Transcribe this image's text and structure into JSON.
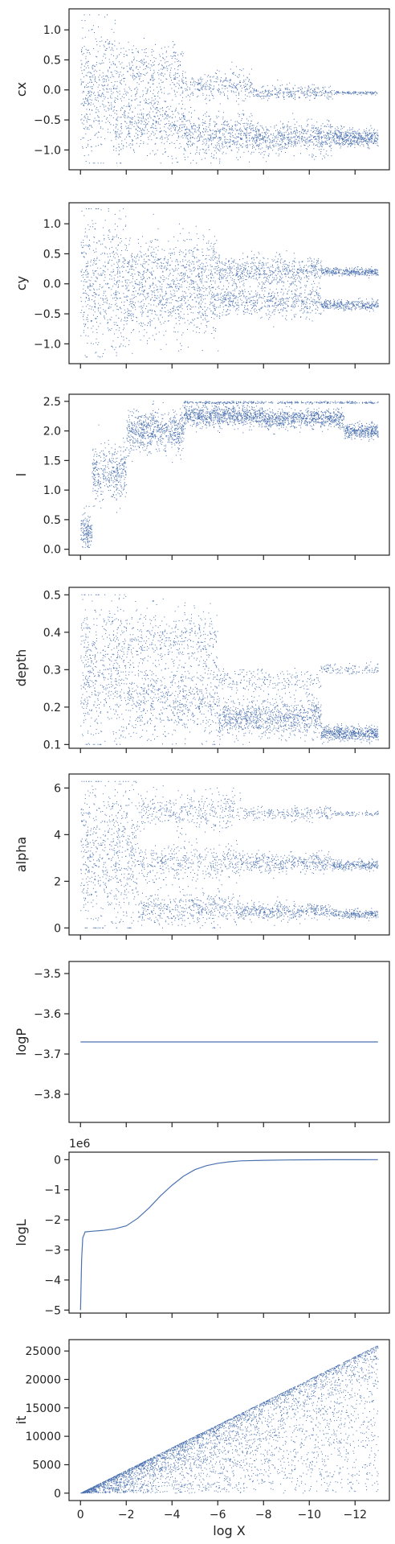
{
  "figure": {
    "background": "#ffffff",
    "point_color": "#4c72b0",
    "xlabel": "log X"
  },
  "chart_data": [
    {
      "type": "scatter",
      "ylabel": "cx",
      "xlim": [
        0.5,
        -13.5
      ],
      "ylim": [
        -1.33,
        1.35
      ],
      "yticks": [
        -1.0,
        -0.5,
        0.0,
        0.5,
        1.0
      ],
      "ytick_labels": [
        "−1.0",
        "−0.5",
        "0.0",
        "0.5",
        "1.0"
      ],
      "xticks": [
        0,
        -2,
        -4,
        -6,
        -8,
        -10,
        -12
      ],
      "show_xtick_labels": false,
      "x_range": [
        0,
        -13
      ],
      "cluster_profile": [
        {
          "x": 0,
          "centers": [
            0.0
          ],
          "spread": [
            1.1
          ],
          "weight": [
            1
          ]
        },
        {
          "x": -3,
          "centers": [
            0.3,
            -0.55
          ],
          "spread": [
            0.5,
            0.5
          ],
          "weight": [
            0.45,
            0.55
          ]
        },
        {
          "x": -6,
          "centers": [
            0.05,
            -0.75
          ],
          "spread": [
            0.25,
            0.35
          ],
          "weight": [
            0.35,
            0.65
          ]
        },
        {
          "x": -9,
          "centers": [
            -0.05,
            -0.8
          ],
          "spread": [
            0.12,
            0.25
          ],
          "weight": [
            0.3,
            0.7
          ]
        },
        {
          "x": -13,
          "centers": [
            -0.05,
            -0.8
          ],
          "spread": [
            0.03,
            0.15
          ],
          "weight": [
            0.2,
            0.8
          ]
        }
      ],
      "clip": [
        -1.22,
        1.25
      ]
    },
    {
      "type": "scatter",
      "ylabel": "cy",
      "xlim": [
        0.5,
        -13.5
      ],
      "ylim": [
        -1.33,
        1.35
      ],
      "yticks": [
        -1.0,
        -0.5,
        0.0,
        0.5,
        1.0
      ],
      "ytick_labels": [
        "−1.0",
        "−0.5",
        "0.0",
        "0.5",
        "1.0"
      ],
      "xticks": [
        0,
        -2,
        -4,
        -6,
        -8,
        -10,
        -12
      ],
      "show_xtick_labels": false,
      "x_range": [
        0,
        -13
      ],
      "cluster_profile": [
        {
          "x": 0,
          "centers": [
            0.0
          ],
          "spread": [
            1.15
          ],
          "weight": [
            1
          ]
        },
        {
          "x": -4,
          "centers": [
            0.25,
            -0.35
          ],
          "spread": [
            0.55,
            0.55
          ],
          "weight": [
            0.5,
            0.5
          ]
        },
        {
          "x": -8,
          "centers": [
            0.2,
            -0.3
          ],
          "spread": [
            0.25,
            0.25
          ],
          "weight": [
            0.5,
            0.5
          ]
        },
        {
          "x": -13,
          "centers": [
            0.2,
            -0.35
          ],
          "spread": [
            0.07,
            0.08
          ],
          "weight": [
            0.5,
            0.5
          ]
        }
      ],
      "clip": [
        -1.22,
        1.25
      ]
    },
    {
      "type": "scatter",
      "ylabel": "l",
      "xlim": [
        0.5,
        -13.5
      ],
      "ylim": [
        -0.1,
        2.62
      ],
      "yticks": [
        0.0,
        0.5,
        1.0,
        1.5,
        2.0,
        2.5
      ],
      "ytick_labels": [
        "0.0",
        "0.5",
        "1.0",
        "1.5",
        "2.0",
        "2.5"
      ],
      "xticks": [
        0,
        -2,
        -4,
        -6,
        -8,
        -10,
        -12
      ],
      "show_xtick_labels": false,
      "x_range": [
        0,
        -13
      ],
      "cluster_profile": [
        {
          "x": 0,
          "centers": [
            0.3
          ],
          "spread": [
            0.3
          ],
          "weight": [
            1
          ]
        },
        {
          "x": -1,
          "centers": [
            1.3
          ],
          "spread": [
            0.45
          ],
          "weight": [
            1
          ]
        },
        {
          "x": -3,
          "centers": [
            2.0
          ],
          "spread": [
            0.35
          ],
          "weight": [
            1
          ]
        },
        {
          "x": -6,
          "centers": [
            2.25,
            2.48
          ],
          "spread": [
            0.18,
            0.02
          ],
          "weight": [
            0.85,
            0.15
          ]
        },
        {
          "x": -10,
          "centers": [
            2.2,
            2.48
          ],
          "spread": [
            0.15,
            0.02
          ],
          "weight": [
            0.85,
            0.15
          ]
        },
        {
          "x": -13,
          "centers": [
            2.0,
            2.48
          ],
          "spread": [
            0.12,
            0.02
          ],
          "weight": [
            0.85,
            0.15
          ]
        }
      ],
      "clip": [
        0.03,
        2.5
      ]
    },
    {
      "type": "scatter",
      "ylabel": "depth",
      "xlim": [
        0.5,
        -13.5
      ],
      "ylim": [
        0.09,
        0.52
      ],
      "yticks": [
        0.1,
        0.2,
        0.3,
        0.4,
        0.5
      ],
      "ytick_labels": [
        "0.1",
        "0.2",
        "0.3",
        "0.4",
        "0.5"
      ],
      "xticks": [
        0,
        -2,
        -4,
        -6,
        -8,
        -10,
        -12
      ],
      "show_xtick_labels": false,
      "x_range": [
        0,
        -13
      ],
      "cluster_profile": [
        {
          "x": 0,
          "centers": [
            0.3
          ],
          "spread": [
            0.2
          ],
          "weight": [
            1
          ]
        },
        {
          "x": -4,
          "centers": [
            0.22,
            0.38
          ],
          "spread": [
            0.1,
            0.08
          ],
          "weight": [
            0.6,
            0.4
          ]
        },
        {
          "x": -8,
          "centers": [
            0.17,
            0.27
          ],
          "spread": [
            0.05,
            0.03
          ],
          "weight": [
            0.8,
            0.2
          ]
        },
        {
          "x": -13,
          "centers": [
            0.13,
            0.3
          ],
          "spread": [
            0.02,
            0.015
          ],
          "weight": [
            0.85,
            0.15
          ]
        }
      ],
      "clip": [
        0.1,
        0.5
      ]
    },
    {
      "type": "scatter",
      "ylabel": "alpha",
      "xlim": [
        0.5,
        -13.5
      ],
      "ylim": [
        -0.3,
        6.6
      ],
      "yticks": [
        0,
        2,
        4,
        6
      ],
      "ytick_labels": [
        "0",
        "2",
        "4",
        "6"
      ],
      "xticks": [
        0,
        -2,
        -4,
        -6,
        -8,
        -10,
        -12
      ],
      "show_xtick_labels": false,
      "x_range": [
        0,
        -13
      ],
      "cluster_profile": [
        {
          "x": 0,
          "centers": [
            3.15
          ],
          "spread": [
            3.2
          ],
          "weight": [
            1
          ]
        },
        {
          "x": -5,
          "centers": [
            0.8,
            2.8,
            5.0
          ],
          "spread": [
            0.7,
            0.8,
            0.8
          ],
          "weight": [
            0.35,
            0.35,
            0.3
          ]
        },
        {
          "x": -9,
          "centers": [
            0.7,
            2.8,
            4.9
          ],
          "spread": [
            0.35,
            0.4,
            0.3
          ],
          "weight": [
            0.4,
            0.4,
            0.2
          ]
        },
        {
          "x": -13,
          "centers": [
            0.6,
            2.7,
            4.9
          ],
          "spread": [
            0.2,
            0.2,
            0.1
          ],
          "weight": [
            0.4,
            0.45,
            0.15
          ]
        }
      ],
      "clip": [
        0.0,
        6.28
      ]
    },
    {
      "type": "line",
      "ylabel": "logP",
      "xlim": [
        0.5,
        -13.5
      ],
      "ylim": [
        -3.87,
        -3.47
      ],
      "yticks": [
        -3.8,
        -3.7,
        -3.6,
        -3.5
      ],
      "ytick_labels": [
        "−3.8",
        "−3.7",
        "−3.6",
        "−3.5"
      ],
      "xticks": [
        0,
        -2,
        -4,
        -6,
        -8,
        -10,
        -12
      ],
      "show_xtick_labels": false,
      "x": [
        0,
        -13
      ],
      "y": [
        -3.67,
        -3.67
      ]
    },
    {
      "type": "line",
      "ylabel": "logL",
      "offset_text": "1e6",
      "xlim": [
        0.5,
        -13.5
      ],
      "ylim": [
        -5.1,
        0.25
      ],
      "yticks": [
        -5,
        -4,
        -3,
        -2,
        -1,
        0
      ],
      "ytick_labels": [
        "−5",
        "−4",
        "−3",
        "−2",
        "−1",
        "0"
      ],
      "xticks": [
        0,
        -2,
        -4,
        -6,
        -8,
        -10,
        -12
      ],
      "show_xtick_labels": false,
      "x": [
        0,
        -0.05,
        -0.1,
        -0.2,
        -0.5,
        -1,
        -1.5,
        -2,
        -2.5,
        -3,
        -3.5,
        -4,
        -4.5,
        -5,
        -5.5,
        -6,
        -6.5,
        -7,
        -8,
        -9,
        -10,
        -11,
        -12,
        -13
      ],
      "y": [
        -5.0,
        -3.3,
        -2.6,
        -2.4,
        -2.38,
        -2.35,
        -2.3,
        -2.2,
        -1.95,
        -1.6,
        -1.2,
        -0.85,
        -0.55,
        -0.33,
        -0.2,
        -0.12,
        -0.07,
        -0.04,
        -0.02,
        -0.01,
        -0.005,
        -0.002,
        -0.001,
        0.0
      ]
    },
    {
      "type": "scatter",
      "ylabel": "it",
      "xlim": [
        0.5,
        -13.5
      ],
      "ylim": [
        -1300,
        27000
      ],
      "yticks": [
        0,
        5000,
        10000,
        15000,
        20000,
        25000
      ],
      "ytick_labels": [
        "0",
        "5000",
        "10000",
        "15000",
        "20000",
        "25000"
      ],
      "xticks": [
        0,
        -2,
        -4,
        -6,
        -8,
        -10,
        -12
      ],
      "xtick_labels": [
        "0",
        "−2",
        "−4",
        "−6",
        "−8",
        "−10",
        "−12"
      ],
      "show_xtick_labels": true,
      "upper_line": {
        "x": [
          0,
          -13
        ],
        "y": [
          0,
          26000
        ]
      },
      "lower_note": "points spread below the upper line"
    }
  ]
}
